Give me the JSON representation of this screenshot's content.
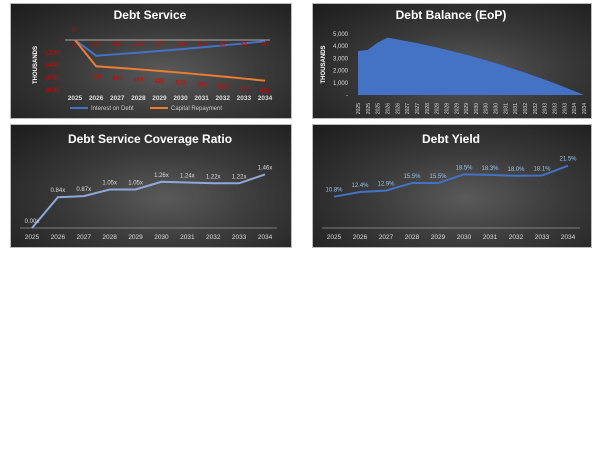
{
  "chart_data": [
    {
      "type": "line",
      "title": "Debt Service",
      "ylabel": "THOUSANDS",
      "ylim": [
        -800,
        0
      ],
      "yticks": [
        "-",
        "(200)",
        "(400)",
        "(600)",
        "(800)"
      ],
      "categories": [
        "2025",
        "2026",
        "2027",
        "2028",
        "2029",
        "2030",
        "2031",
        "2032",
        "2033",
        "2034"
      ],
      "series": [
        {
          "name": "Interest on Debt",
          "color": "#4472c4",
          "values": [
            0,
            -251,
            -227,
            -202,
            -176,
            -148,
            -118,
            -87,
            -54,
            -20
          ],
          "labels": [
            "0",
            "251",
            "227",
            "202",
            "176",
            "148",
            "118",
            "87",
            "54",
            "20"
          ]
        },
        {
          "name": "Capital Repayment",
          "color": "#ed7d31",
          "values": [
            0,
            -420,
            -444,
            -469,
            -495,
            -523,
            -553,
            -584,
            -617,
            -651
          ],
          "labels": [
            "0",
            "420",
            "444",
            "469",
            "495",
            "523",
            "553",
            "584",
            "617",
            "651"
          ]
        }
      ],
      "label_color": "#e00000",
      "legend": "bottom"
    },
    {
      "type": "area",
      "title": "Debt Balance (EoP)",
      "ylabel": "THOUSANDS",
      "ylim": [
        0,
        5000
      ],
      "yticks": [
        "5,000",
        "4,000",
        "3,000",
        "2,000",
        "1,000",
        "-"
      ],
      "categories": [
        "2025",
        "2025",
        "2025",
        "2026",
        "2026",
        "2027",
        "2027",
        "2028",
        "2028",
        "2028",
        "2029",
        "2029",
        "2030",
        "2030",
        "2030",
        "2031",
        "2031",
        "2032",
        "2032",
        "2033",
        "2033",
        "2033",
        "2034",
        "2034"
      ],
      "values": [
        3600,
        3700,
        4300,
        4700,
        4560,
        4410,
        4250,
        4080,
        3900,
        3710,
        3510,
        3300,
        3080,
        2850,
        2610,
        2360,
        2100,
        1830,
        1550,
        1260,
        960,
        650,
        330,
        0
      ],
      "color": "#4472c4"
    },
    {
      "type": "line",
      "title": "Debt Service Coverage Ratio",
      "ylim": [
        0,
        1.5
      ],
      "categories": [
        "2025",
        "2026",
        "2027",
        "2028",
        "2029",
        "2030",
        "2031",
        "2032",
        "2033",
        "2034"
      ],
      "values": [
        0,
        0.84,
        0.87,
        1.05,
        1.05,
        1.26,
        1.24,
        1.22,
        1.22,
        1.46
      ],
      "labels": [
        "0.00x",
        "0.84x",
        "0.87x",
        "1.05x",
        "1.05x",
        "1.26x",
        "1.24x",
        "1.22x",
        "1.22x",
        "1.46x"
      ],
      "color": "#8ea9db"
    },
    {
      "type": "line",
      "title": "Debt Yield",
      "ylim": [
        0,
        0.25
      ],
      "categories": [
        "2025",
        "2026",
        "2027",
        "2028",
        "2029",
        "2030",
        "2031",
        "2032",
        "2033",
        "2034"
      ],
      "values": [
        0.108,
        0.124,
        0.129,
        0.155,
        0.155,
        0.185,
        0.183,
        0.18,
        0.181,
        0.215
      ],
      "labels": [
        "10.8%",
        "12.4%",
        "12.9%",
        "15.5%",
        "15.5%",
        "18.5%",
        "18.3%",
        "18.0%",
        "18.1%",
        "21.5%"
      ],
      "color": "#4472c4",
      "label_color": "#9dc3e6"
    }
  ]
}
